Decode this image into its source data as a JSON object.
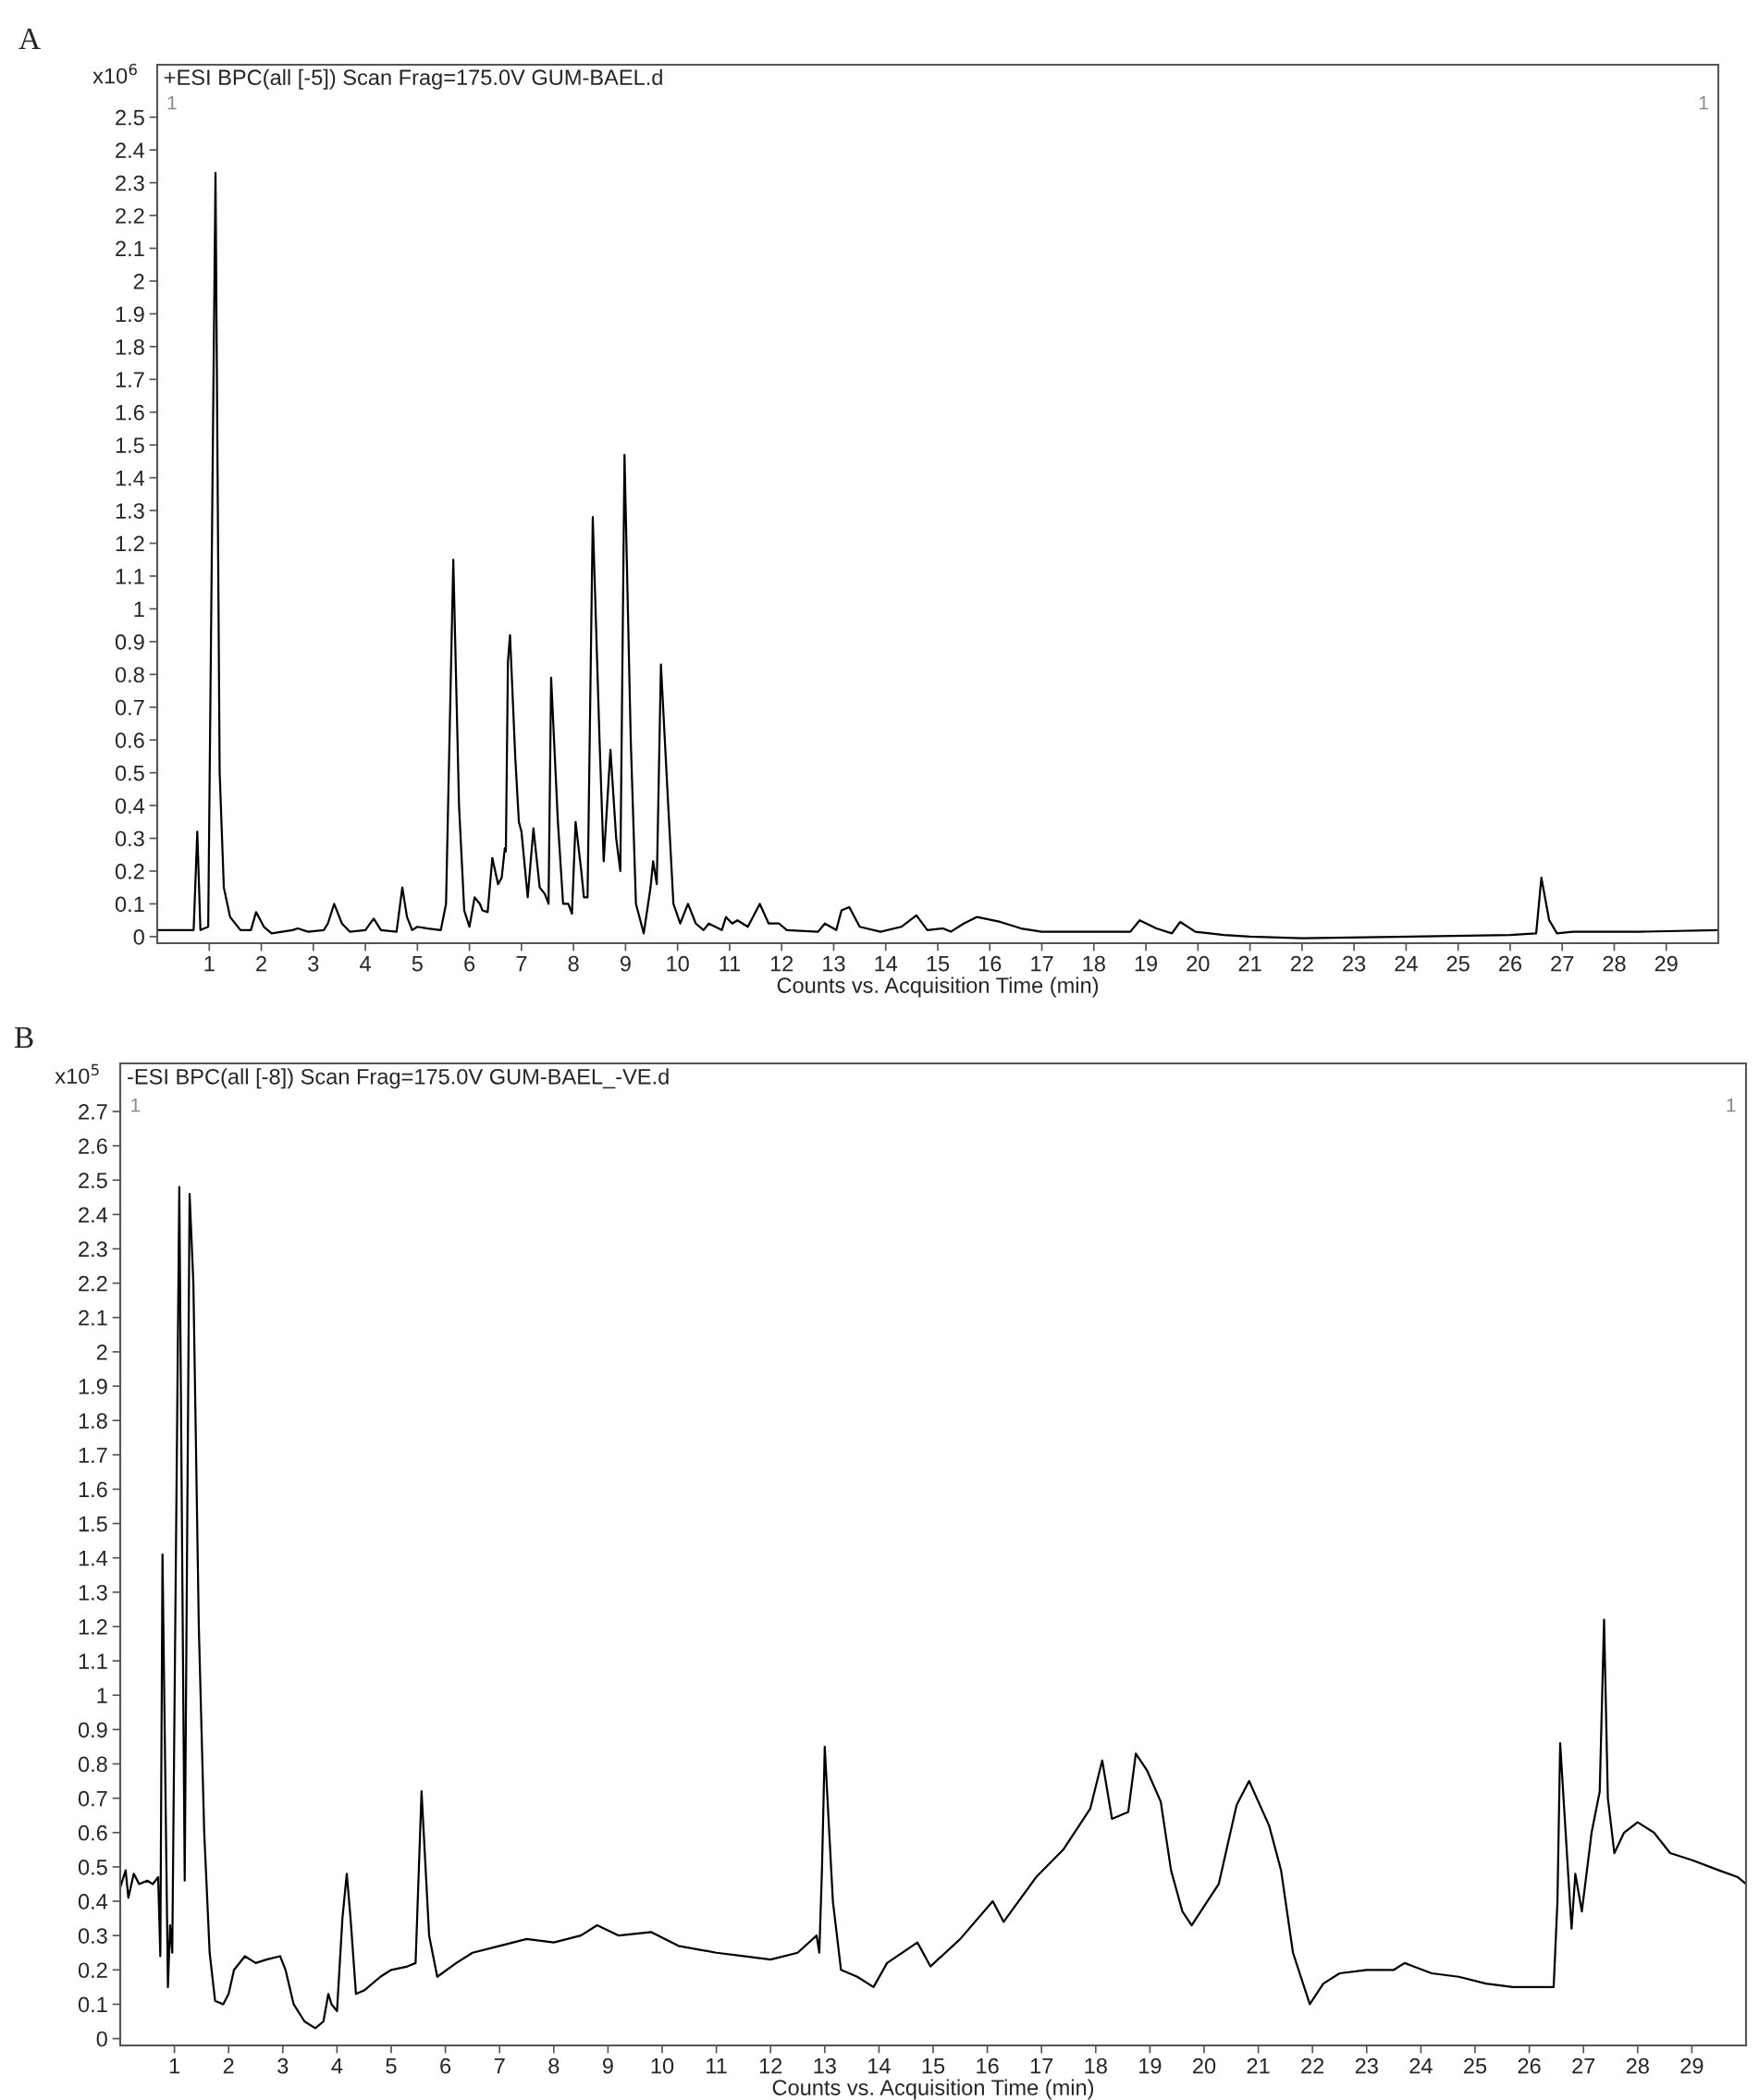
{
  "chart_data": [
    {
      "type": "line",
      "title": "A",
      "subtitle": "+ESI BPC(all [-5]) Scan Frag=175.0V GUM-BAEL.d",
      "ylabel": "x10$^{6}$",
      "xlabel": "Counts vs. Acquisition Time (min)",
      "annotations": [
        "1",
        "1"
      ],
      "xlim": [
        0,
        30
      ],
      "ylim": [
        -0.02,
        2.66
      ],
      "grid": false,
      "xticks": [
        1,
        2,
        3,
        4,
        5,
        6,
        7,
        8,
        9,
        10,
        11,
        12,
        13,
        14,
        15,
        16,
        17,
        18,
        19,
        20,
        21,
        22,
        23,
        24,
        25,
        26,
        27,
        28,
        29
      ],
      "yticks": [
        0,
        0.1,
        0.2,
        0.3,
        0.4,
        0.5,
        0.6,
        0.7,
        0.8,
        0.9,
        1,
        1.1,
        1.2,
        1.3,
        1.4,
        1.5,
        1.6,
        1.7,
        1.8,
        1.9,
        2,
        2.1,
        2.2,
        2.3,
        2.4,
        2.5
      ],
      "series": [
        {
          "color": "#000000",
          "x": [
            0,
            0.7,
            0.77,
            0.83,
            0.98,
            1.12,
            1.2,
            1.28,
            1.4,
            1.6,
            1.8,
            1.9,
            2.05,
            2.2,
            2.6,
            2.7,
            2.9,
            3.2,
            3.28,
            3.4,
            3.55,
            3.7,
            4.0,
            4.16,
            4.3,
            4.6,
            4.71,
            4.8,
            4.9,
            5.0,
            5.2,
            5.45,
            5.55,
            5.69,
            5.8,
            5.9,
            6.0,
            6.1,
            6.2,
            6.25,
            6.35,
            6.44,
            6.55,
            6.62,
            6.68,
            6.7,
            6.74,
            6.78,
            6.88,
            6.95,
            7.0,
            7.12,
            7.23,
            7.35,
            7.45,
            7.52,
            7.57,
            7.7,
            7.8,
            7.9,
            7.97,
            8.04,
            8.15,
            8.2,
            8.27,
            8.37,
            8.5,
            8.58,
            8.71,
            8.82,
            8.9,
            8.98,
            9.1,
            9.2,
            9.35,
            9.48,
            9.53,
            9.6,
            9.68,
            9.82,
            9.92,
            10.05,
            10.2,
            10.35,
            10.5,
            10.6,
            10.85,
            10.93,
            11.05,
            11.15,
            11.35,
            11.58,
            11.75,
            11.95,
            12.1,
            12.7,
            12.83,
            13.05,
            13.15,
            13.3,
            13.5,
            13.9,
            14.3,
            14.59,
            14.8,
            15.1,
            15.25,
            15.5,
            15.75,
            16.2,
            16.6,
            17.0,
            18.7,
            18.88,
            19.2,
            19.5,
            19.66,
            19.95,
            20.5,
            21.0,
            22.0,
            26.0,
            26.5,
            26.6,
            26.75,
            26.9,
            27.2,
            28.5,
            30.0
          ],
          "values": [
            0.02,
            0.02,
            0.32,
            0.02,
            0.03,
            2.33,
            0.5,
            0.15,
            0.06,
            0.02,
            0.02,
            0.075,
            0.03,
            0.01,
            0.02,
            0.025,
            0.015,
            0.02,
            0.04,
            0.1,
            0.04,
            0.015,
            0.02,
            0.055,
            0.02,
            0.015,
            0.15,
            0.06,
            0.02,
            0.03,
            0.025,
            0.02,
            0.1,
            1.15,
            0.4,
            0.08,
            0.03,
            0.12,
            0.1,
            0.08,
            0.075,
            0.24,
            0.16,
            0.18,
            0.27,
            0.26,
            0.84,
            0.92,
            0.55,
            0.35,
            0.32,
            0.12,
            0.33,
            0.15,
            0.13,
            0.1,
            0.79,
            0.35,
            0.1,
            0.1,
            0.07,
            0.35,
            0.2,
            0.12,
            0.12,
            1.28,
            0.6,
            0.23,
            0.57,
            0.3,
            0.2,
            1.47,
            0.6,
            0.1,
            0.01,
            0.15,
            0.23,
            0.16,
            0.83,
            0.4,
            0.1,
            0.04,
            0.1,
            0.04,
            0.02,
            0.04,
            0.02,
            0.06,
            0.04,
            0.05,
            0.03,
            0.1,
            0.04,
            0.04,
            0.02,
            0.015,
            0.04,
            0.02,
            0.08,
            0.09,
            0.03,
            0.015,
            0.03,
            0.065,
            0.02,
            0.025,
            0.015,
            0.04,
            0.06,
            0.045,
            0.025,
            0.015,
            0.015,
            0.05,
            0.025,
            0.01,
            0.045,
            0.015,
            0.005,
            0.0,
            -0.005,
            0.005,
            0.01,
            0.18,
            0.05,
            0.01,
            0.015,
            0.015,
            0.02
          ]
        }
      ]
    },
    {
      "type": "line",
      "title": "B",
      "subtitle": "-ESI BPC(all [-8]) Scan Frag=175.0V GUM-BAEL_-VE.d",
      "ylabel": "x10$^{5}$",
      "xlabel": "Counts vs. Acquisition Time (min)",
      "annotations": [
        "1",
        "1"
      ],
      "xlim": [
        0,
        30
      ],
      "ylim": [
        -0.02,
        2.84
      ],
      "grid": false,
      "xticks": [
        1,
        2,
        3,
        4,
        5,
        6,
        7,
        8,
        9,
        10,
        11,
        12,
        13,
        14,
        15,
        16,
        17,
        18,
        19,
        20,
        21,
        22,
        23,
        24,
        25,
        26,
        27,
        28,
        29
      ],
      "yticks": [
        0,
        0.1,
        0.2,
        0.3,
        0.4,
        0.5,
        0.6,
        0.7,
        0.8,
        0.9,
        1,
        1.1,
        1.2,
        1.3,
        1.4,
        1.5,
        1.6,
        1.7,
        1.8,
        1.9,
        2,
        2.1,
        2.2,
        2.3,
        2.4,
        2.5,
        2.6,
        2.7
      ],
      "series": [
        {
          "color": "#000000",
          "x": [
            0,
            0.1,
            0.15,
            0.25,
            0.35,
            0.5,
            0.6,
            0.7,
            0.74,
            0.78,
            0.88,
            0.92,
            0.96,
            1.09,
            1.19,
            1.28,
            1.35,
            1.45,
            1.55,
            1.65,
            1.75,
            1.9,
            2.0,
            2.1,
            2.3,
            2.5,
            2.7,
            2.95,
            3.05,
            3.2,
            3.4,
            3.6,
            3.75,
            3.84,
            3.9,
            4.0,
            4.1,
            4.18,
            4.25,
            4.35,
            4.5,
            4.8,
            5.0,
            5.3,
            5.45,
            5.56,
            5.7,
            5.85,
            6.2,
            6.5,
            7.0,
            7.5,
            8.0,
            8.5,
            8.8,
            9.2,
            9.8,
            10.3,
            11.0,
            11.5,
            12.0,
            12.5,
            12.85,
            12.9,
            12.95,
            13.0,
            13.15,
            13.3,
            13.6,
            13.9,
            14.15,
            14.71,
            14.95,
            15.5,
            16.1,
            16.3,
            16.9,
            17.4,
            17.9,
            18.12,
            18.3,
            18.6,
            18.74,
            18.95,
            19.2,
            19.39,
            19.6,
            19.77,
            20.27,
            20.6,
            20.83,
            21.2,
            21.42,
            21.64,
            21.95,
            22.2,
            22.5,
            23.0,
            23.5,
            23.7,
            24.2,
            24.7,
            25.2,
            25.7,
            26.2,
            26.45,
            26.52,
            26.57,
            26.78,
            26.85,
            26.97,
            27.15,
            27.3,
            27.38,
            27.45,
            27.57,
            27.75,
            28.0,
            28.3,
            28.6,
            29.0,
            29.5,
            29.85,
            30.0
          ],
          "values": [
            0.44,
            0.49,
            0.41,
            0.48,
            0.45,
            0.46,
            0.45,
            0.47,
            0.24,
            1.41,
            0.15,
            0.33,
            0.25,
            2.48,
            0.46,
            2.46,
            2.2,
            1.2,
            0.6,
            0.25,
            0.11,
            0.1,
            0.13,
            0.2,
            0.24,
            0.22,
            0.23,
            0.24,
            0.2,
            0.1,
            0.05,
            0.03,
            0.05,
            0.13,
            0.1,
            0.08,
            0.35,
            0.48,
            0.35,
            0.13,
            0.14,
            0.18,
            0.2,
            0.21,
            0.22,
            0.72,
            0.3,
            0.18,
            0.22,
            0.25,
            0.27,
            0.29,
            0.28,
            0.3,
            0.33,
            0.3,
            0.31,
            0.27,
            0.25,
            0.24,
            0.23,
            0.25,
            0.3,
            0.25,
            0.5,
            0.85,
            0.4,
            0.2,
            0.18,
            0.15,
            0.22,
            0.28,
            0.21,
            0.29,
            0.4,
            0.34,
            0.47,
            0.55,
            0.67,
            0.81,
            0.64,
            0.66,
            0.83,
            0.78,
            0.69,
            0.49,
            0.37,
            0.33,
            0.45,
            0.68,
            0.75,
            0.62,
            0.49,
            0.25,
            0.1,
            0.16,
            0.19,
            0.2,
            0.2,
            0.22,
            0.19,
            0.18,
            0.16,
            0.15,
            0.15,
            0.15,
            0.4,
            0.86,
            0.32,
            0.48,
            0.37,
            0.6,
            0.72,
            1.22,
            0.7,
            0.54,
            0.6,
            0.63,
            0.6,
            0.54,
            0.52,
            0.49,
            0.47,
            0.45
          ]
        }
      ]
    }
  ]
}
